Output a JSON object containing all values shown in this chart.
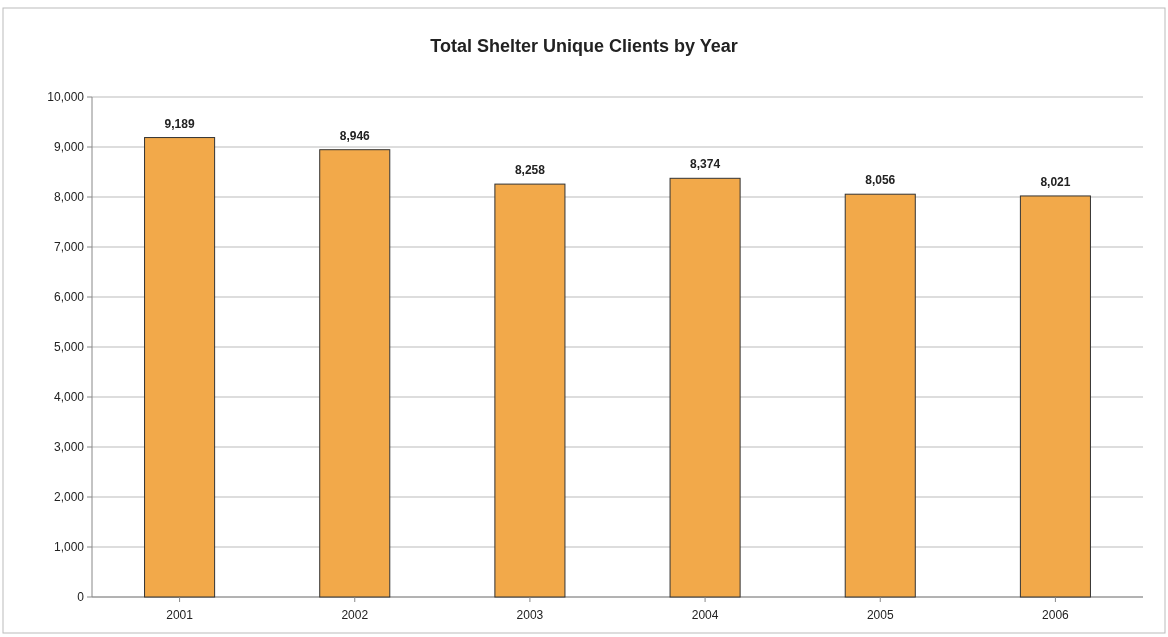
{
  "chart_data": {
    "type": "bar",
    "title": "Total Shelter Unique Clients by Year",
    "categories": [
      "2001",
      "2002",
      "2003",
      "2004",
      "2005",
      "2006"
    ],
    "values": [
      9189,
      8946,
      8258,
      8374,
      8056,
      8021
    ],
    "value_labels": [
      "9,189",
      "8,946",
      "8,258",
      "8,374",
      "8,056",
      "8,021"
    ],
    "color": "#f2a94a",
    "ylim": [
      0,
      10000
    ],
    "yticks": [
      {
        "value": 0,
        "label": "0"
      },
      {
        "value": 1000,
        "label": "1,000"
      },
      {
        "value": 2000,
        "label": "2,000"
      },
      {
        "value": 3000,
        "label": "3,000"
      },
      {
        "value": 4000,
        "label": "4,000"
      },
      {
        "value": 5000,
        "label": "5,000"
      },
      {
        "value": 6000,
        "label": "6,000"
      },
      {
        "value": 7000,
        "label": "7,000"
      },
      {
        "value": 8000,
        "label": "8,000"
      },
      {
        "value": 9000,
        "label": "9,000"
      },
      {
        "value": 10000,
        "label": "10,000"
      }
    ],
    "grid": "y"
  }
}
